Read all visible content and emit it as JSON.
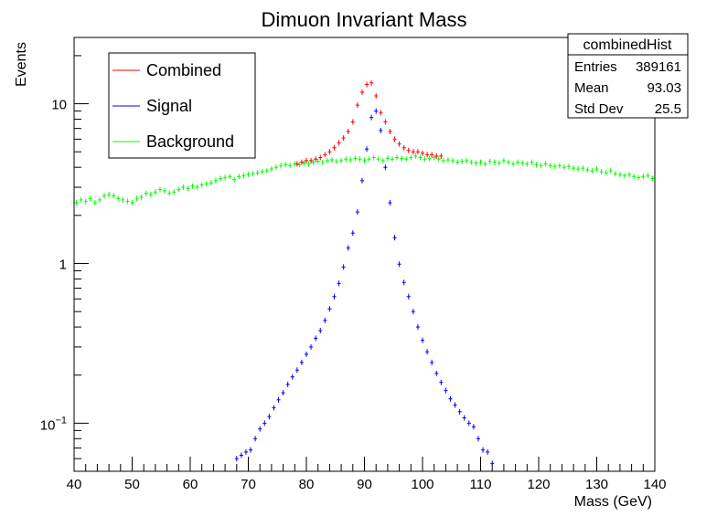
{
  "chart_data": {
    "type": "scatter",
    "title": "Dimuon Invariant Mass",
    "xlabel": "Mass (GeV)",
    "ylabel": "Events",
    "xlim": [
      40,
      140
    ],
    "ylim": [
      0.05,
      26
    ],
    "yscale": "log",
    "grid": false,
    "legend_position": "top-left",
    "x_ticks": [
      "40",
      "50",
      "60",
      "70",
      "80",
      "90",
      "100",
      "110",
      "120",
      "130",
      "140"
    ],
    "y_ticks": [
      {
        "value": 0.1,
        "base": "10",
        "exp": "−1"
      },
      {
        "value": 1,
        "label": "1"
      },
      {
        "value": 10,
        "label": "10"
      }
    ],
    "stats": {
      "title": "combinedHist",
      "rows": [
        {
          "name": "Entries",
          "value": "389161"
        },
        {
          "name": "Mean",
          "value": "93.03"
        },
        {
          "name": "Std Dev",
          "value": "25.5"
        }
      ]
    },
    "bin_width": 0.8,
    "series": [
      {
        "name": "Combined",
        "color": "#ff0000",
        "x": [
          78.4,
          79.2,
          80.0,
          80.8,
          81.6,
          82.4,
          83.2,
          84.0,
          84.8,
          85.6,
          86.4,
          87.2,
          88.0,
          88.8,
          89.6,
          90.4,
          91.2,
          92.0,
          92.8,
          93.6,
          94.4,
          95.2,
          96.0,
          96.8,
          97.6,
          98.4,
          99.2,
          100.0,
          100.8,
          101.6,
          102.4,
          103.2
        ],
        "y": [
          4.2,
          4.3,
          4.4,
          4.4,
          4.5,
          4.6,
          4.8,
          5.0,
          5.3,
          5.7,
          6.1,
          6.7,
          7.7,
          9.8,
          11.8,
          13.2,
          13.5,
          11.2,
          8.8,
          7.7,
          6.7,
          6.0,
          5.6,
          5.3,
          5.1,
          5.0,
          5.0,
          4.9,
          4.8,
          4.8,
          4.7,
          4.7
        ]
      },
      {
        "name": "Signal",
        "color": "#0000ff",
        "x": [
          68.0,
          68.8,
          69.6,
          70.4,
          71.2,
          72.0,
          72.8,
          73.6,
          74.4,
          75.2,
          76.0,
          76.8,
          77.6,
          78.4,
          79.2,
          80.0,
          80.8,
          81.6,
          82.4,
          83.2,
          84.0,
          84.8,
          85.6,
          86.4,
          87.2,
          88.0,
          88.8,
          89.6,
          90.4,
          91.2,
          92.0,
          92.8,
          93.6,
          94.4,
          95.2,
          96.0,
          96.8,
          97.6,
          98.4,
          99.2,
          100.0,
          100.8,
          101.6,
          102.4,
          103.2,
          104.0,
          104.8,
          105.6,
          106.4,
          107.2,
          108.0,
          108.8,
          109.6,
          110.4,
          111.2,
          112.0
        ],
        "y": [
          0.06,
          0.063,
          0.066,
          0.068,
          0.08,
          0.092,
          0.1,
          0.11,
          0.125,
          0.14,
          0.155,
          0.175,
          0.195,
          0.215,
          0.24,
          0.27,
          0.3,
          0.34,
          0.38,
          0.44,
          0.52,
          0.62,
          0.75,
          0.95,
          1.25,
          1.55,
          2.1,
          3.3,
          5.2,
          8.2,
          9.0,
          6.8,
          4.0,
          2.4,
          1.45,
          0.99,
          0.76,
          0.62,
          0.5,
          0.4,
          0.33,
          0.28,
          0.24,
          0.205,
          0.18,
          0.16,
          0.142,
          0.13,
          0.118,
          0.108,
          0.1,
          0.095,
          0.08,
          0.068,
          0.066,
          0.056
        ]
      },
      {
        "name": "Background",
        "color": "#00ff00",
        "x": [
          40.4,
          41.2,
          42.0,
          42.8,
          43.6,
          44.4,
          45.2,
          46.0,
          46.8,
          47.6,
          48.4,
          49.2,
          50.0,
          50.8,
          51.6,
          52.4,
          53.2,
          54.0,
          54.8,
          55.6,
          56.4,
          57.2,
          58.0,
          58.8,
          59.6,
          60.4,
          61.2,
          62.0,
          62.8,
          63.6,
          64.4,
          65.2,
          66.0,
          66.8,
          67.6,
          68.4,
          69.2,
          70.0,
          70.8,
          71.6,
          72.4,
          73.2,
          74.0,
          74.8,
          75.6,
          76.4,
          77.2,
          78.0,
          78.8,
          79.6,
          80.4,
          81.2,
          82.0,
          82.8,
          83.6,
          84.4,
          85.2,
          86.0,
          86.8,
          87.6,
          88.4,
          89.2,
          90.0,
          90.8,
          91.6,
          92.4,
          93.2,
          94.0,
          94.8,
          95.6,
          96.4,
          97.2,
          98.0,
          98.8,
          99.6,
          100.4,
          101.2,
          102.0,
          102.8,
          103.6,
          104.4,
          105.2,
          106.0,
          106.8,
          107.6,
          108.4,
          109.2,
          110.0,
          110.8,
          111.6,
          112.4,
          113.2,
          114.0,
          114.8,
          115.6,
          116.4,
          117.2,
          118.0,
          118.8,
          119.6,
          120.4,
          121.2,
          122.0,
          122.8,
          123.6,
          124.4,
          125.2,
          126.0,
          126.8,
          127.6,
          128.4,
          129.2,
          130.0,
          130.8,
          131.6,
          132.4,
          133.2,
          134.0,
          134.8,
          135.6,
          136.4,
          137.2,
          138.0,
          138.8,
          139.6
        ],
        "y": [
          2.4,
          2.5,
          2.45,
          2.55,
          2.4,
          2.5,
          2.65,
          2.7,
          2.65,
          2.55,
          2.5,
          2.45,
          2.4,
          2.55,
          2.6,
          2.75,
          2.7,
          2.8,
          2.9,
          2.85,
          2.75,
          2.8,
          2.9,
          3.0,
          2.95,
          3.05,
          3.0,
          3.1,
          3.15,
          3.2,
          3.3,
          3.4,
          3.45,
          3.5,
          3.35,
          3.5,
          3.55,
          3.6,
          3.65,
          3.7,
          3.75,
          3.8,
          3.9,
          4.0,
          4.1,
          4.15,
          4.1,
          4.2,
          4.15,
          4.25,
          4.2,
          4.3,
          4.35,
          4.3,
          4.4,
          4.45,
          4.35,
          4.4,
          4.5,
          4.45,
          4.55,
          4.5,
          4.4,
          4.5,
          4.6,
          4.5,
          4.4,
          4.55,
          4.5,
          4.6,
          4.55,
          4.5,
          4.6,
          4.7,
          4.6,
          4.5,
          4.55,
          4.6,
          4.5,
          4.4,
          4.45,
          4.4,
          4.3,
          4.35,
          4.4,
          4.3,
          4.25,
          4.3,
          4.2,
          4.35,
          4.3,
          4.25,
          4.4,
          4.3,
          4.2,
          4.3,
          4.25,
          4.2,
          4.3,
          4.15,
          4.1,
          4.2,
          4.1,
          4.05,
          4.1,
          4.0,
          4.05,
          3.95,
          3.9,
          3.95,
          3.85,
          3.8,
          3.9,
          3.75,
          3.7,
          3.8,
          3.65,
          3.6,
          3.55,
          3.6,
          3.5,
          3.45,
          3.5,
          3.55,
          3.4
        ]
      }
    ]
  }
}
